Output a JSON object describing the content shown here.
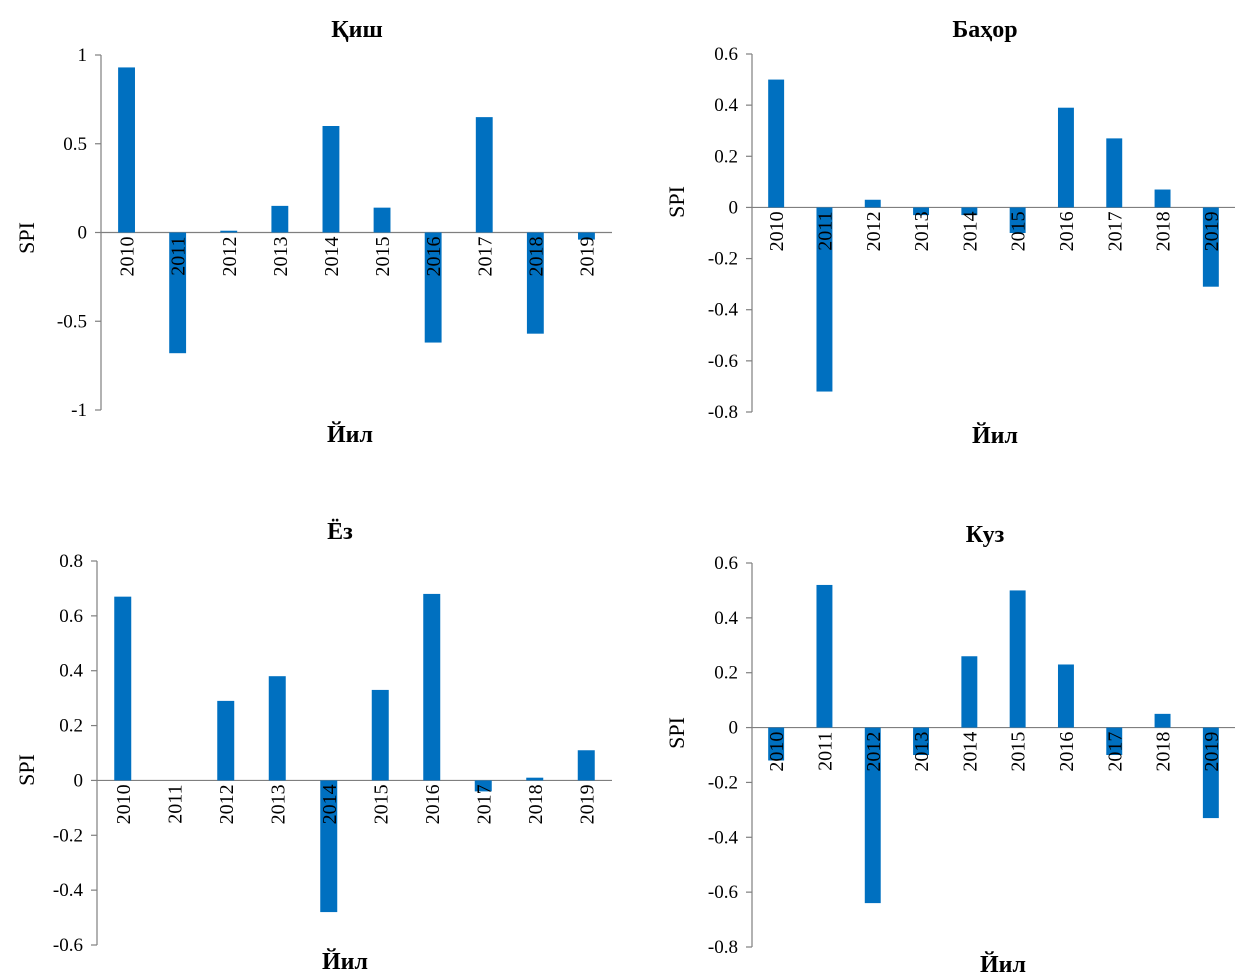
{
  "chart_data": [
    {
      "type": "bar",
      "title": "Қиш",
      "xlabel": "Йил",
      "ylabel": "SPI",
      "categories": [
        "2010",
        "2011",
        "2012",
        "2013",
        "2014",
        "2015",
        "2016",
        "2017",
        "2018",
        "2019"
      ],
      "values": [
        0.93,
        -0.68,
        0.01,
        0.15,
        0.6,
        0.14,
        -0.62,
        0.65,
        -0.57,
        -0.04
      ],
      "ylim": [
        -1,
        1
      ],
      "yticks": [
        "1",
        "0.5",
        "0",
        "-0.5",
        "-1"
      ],
      "bar_color": "#0070c0",
      "grid": false,
      "legend": "none"
    },
    {
      "type": "bar",
      "title": "Баҳор",
      "xlabel": "Йил",
      "ylabel": "SPI",
      "categories": [
        "2010",
        "2011",
        "2012",
        "2013",
        "2014",
        "2015",
        "2016",
        "2017",
        "2018",
        "2019"
      ],
      "values": [
        0.5,
        -0.72,
        0.03,
        -0.03,
        -0.03,
        -0.1,
        0.39,
        0.27,
        0.07,
        -0.31
      ],
      "ylim": [
        -0.8,
        0.6
      ],
      "yticks": [
        "0.6",
        "0.4",
        "0.2",
        "0",
        "-0.2",
        "-0.4",
        "-0.6",
        "-0.8"
      ],
      "bar_color": "#0070c0",
      "grid": false,
      "legend": "none"
    },
    {
      "type": "bar",
      "title": "Ёз",
      "xlabel": "Йил",
      "ylabel": "SPI",
      "categories": [
        "2010",
        "2011",
        "2012",
        "2013",
        "2014",
        "2015",
        "2016",
        "2017",
        "2018",
        "2019"
      ],
      "values": [
        0.67,
        0.0,
        0.29,
        0.38,
        -0.48,
        0.33,
        0.68,
        -0.04,
        0.01,
        0.11
      ],
      "ylim": [
        -0.6,
        0.8
      ],
      "yticks": [
        "0.8",
        "0.6",
        "0.4",
        "0.2",
        "0",
        "-0.2",
        "-0.4",
        "-0.6"
      ],
      "bar_color": "#0070c0",
      "grid": false,
      "legend": "none"
    },
    {
      "type": "bar",
      "title": "Куз",
      "xlabel": "Йил",
      "ylabel": "SPI",
      "categories": [
        "2010",
        "2011",
        "2012",
        "2013",
        "2014",
        "2015",
        "2016",
        "2017",
        "2018",
        "2019"
      ],
      "values": [
        -0.12,
        0.52,
        -0.64,
        -0.1,
        0.26,
        0.5,
        0.23,
        -0.1,
        0.05,
        -0.33
      ],
      "ylim": [
        -0.8,
        0.6
      ],
      "yticks": [
        "0.6",
        "0.4",
        "0.2",
        "0",
        "-0.2",
        "-0.4",
        "-0.6",
        "-0.8"
      ],
      "bar_color": "#0070c0",
      "grid": false,
      "legend": "none"
    }
  ]
}
